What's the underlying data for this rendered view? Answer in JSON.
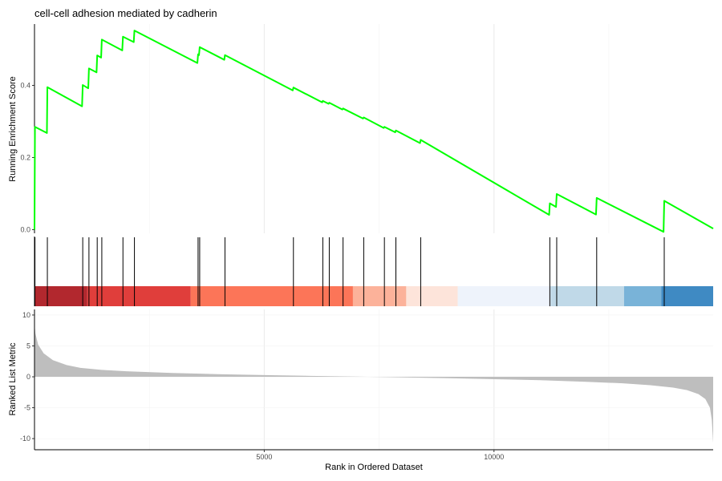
{
  "chart_data": {
    "type": "line",
    "title": "cell-cell adhesion mediated by cadherin",
    "xlabel": "Rank in Ordered Dataset",
    "xlim": [
      0,
      14770
    ],
    "x_ticks": [
      5000,
      10000
    ],
    "x_tick_labels": [
      "5000",
      "10000"
    ],
    "panels": {
      "enrichment": {
        "ylabel": "Running Enrichment Score",
        "ylim": [
          -0.01,
          0.57
        ],
        "y_ticks": [
          0.0,
          0.2,
          0.4
        ],
        "y_tick_labels": [
          "0.0",
          "0.2",
          "0.4"
        ],
        "series": [
          {
            "color": "#00ff00",
            "points": [
              [
                0,
                0.0
              ],
              [
                10,
                0.285
              ],
              [
                270,
                0.268
              ],
              [
                280,
                0.395
              ],
              [
                1035,
                0.342
              ],
              [
                1050,
                0.401
              ],
              [
                1170,
                0.392
              ],
              [
                1185,
                0.447
              ],
              [
                1350,
                0.436
              ],
              [
                1365,
                0.483
              ],
              [
                1450,
                0.477
              ],
              [
                1465,
                0.527
              ],
              [
                1910,
                0.497
              ],
              [
                1925,
                0.535
              ],
              [
                2160,
                0.52
              ],
              [
                2175,
                0.552
              ],
              [
                3545,
                0.462
              ],
              [
                3560,
                0.486
              ],
              [
                3580,
                0.484
              ],
              [
                3595,
                0.506
              ],
              [
                4130,
                0.471
              ],
              [
                4145,
                0.484
              ],
              [
                5620,
                0.386
              ],
              [
                5635,
                0.394
              ],
              [
                6260,
                0.353
              ],
              [
                6275,
                0.357
              ],
              [
                6400,
                0.349
              ],
              [
                6415,
                0.352
              ],
              [
                6700,
                0.333
              ],
              [
                6715,
                0.336
              ],
              [
                7150,
                0.308
              ],
              [
                7165,
                0.311
              ],
              [
                7600,
                0.282
              ],
              [
                7615,
                0.285
              ],
              [
                7850,
                0.27
              ],
              [
                7865,
                0.275
              ],
              [
                8390,
                0.24
              ],
              [
                8405,
                0.249
              ],
              [
                11200,
                0.041
              ],
              [
                11215,
                0.073
              ],
              [
                11350,
                0.063
              ],
              [
                11365,
                0.099
              ],
              [
                12220,
                0.042
              ],
              [
                12235,
                0.088
              ],
              [
                13690,
                -0.006
              ],
              [
                13705,
                0.08
              ],
              [
                14770,
                0.003
              ]
            ]
          }
        ]
      },
      "hits": {
        "positions": [
          10,
          280,
          1050,
          1185,
          1365,
          1465,
          1925,
          2175,
          3560,
          3595,
          4145,
          5635,
          6275,
          6415,
          6715,
          7165,
          7615,
          7865,
          8405,
          11215,
          11365,
          12235,
          13705
        ],
        "color_bands": [
          {
            "from": 0,
            "to": 1150,
            "color": "#b2282e"
          },
          {
            "from": 1150,
            "to": 3400,
            "color": "#e03e3b"
          },
          {
            "from": 3400,
            "to": 6930,
            "color": "#fc7558"
          },
          {
            "from": 6930,
            "to": 8090,
            "color": "#fcb29a"
          },
          {
            "from": 8090,
            "to": 9210,
            "color": "#fde4da"
          },
          {
            "from": 9210,
            "to": 11230,
            "color": "#eef3fb"
          },
          {
            "from": 11230,
            "to": 12830,
            "color": "#c0d9e8"
          },
          {
            "from": 12830,
            "to": 13640,
            "color": "#79b3d8"
          },
          {
            "from": 13640,
            "to": 14770,
            "color": "#3f8ac3"
          }
        ]
      },
      "ranked_metric": {
        "ylabel": "Ranked List Metric",
        "ylim": [
          -11.8,
          10.9
        ],
        "y_ticks": [
          10,
          5,
          0,
          -5,
          -10
        ],
        "y_tick_labels": [
          "10",
          "5",
          "0",
          "-5",
          "-10"
        ],
        "fill_color": "#bebebe",
        "curve": [
          [
            0,
            8.5
          ],
          [
            20,
            7.0
          ],
          [
            80,
            5.2
          ],
          [
            200,
            3.8
          ],
          [
            400,
            2.7
          ],
          [
            700,
            1.9
          ],
          [
            1000,
            1.45
          ],
          [
            1500,
            1.1
          ],
          [
            2000,
            0.9
          ],
          [
            3000,
            0.62
          ],
          [
            4000,
            0.43
          ],
          [
            5000,
            0.28
          ],
          [
            6000,
            0.15
          ],
          [
            7000,
            0.03
          ],
          [
            8000,
            -0.1
          ],
          [
            9000,
            -0.22
          ],
          [
            10000,
            -0.38
          ],
          [
            11000,
            -0.55
          ],
          [
            12000,
            -0.8
          ],
          [
            12800,
            -1.05
          ],
          [
            13400,
            -1.35
          ],
          [
            13900,
            -1.75
          ],
          [
            14200,
            -2.15
          ],
          [
            14450,
            -2.8
          ],
          [
            14600,
            -3.6
          ],
          [
            14700,
            -5.0
          ],
          [
            14740,
            -7.0
          ],
          [
            14770,
            -10.7
          ]
        ]
      }
    }
  }
}
